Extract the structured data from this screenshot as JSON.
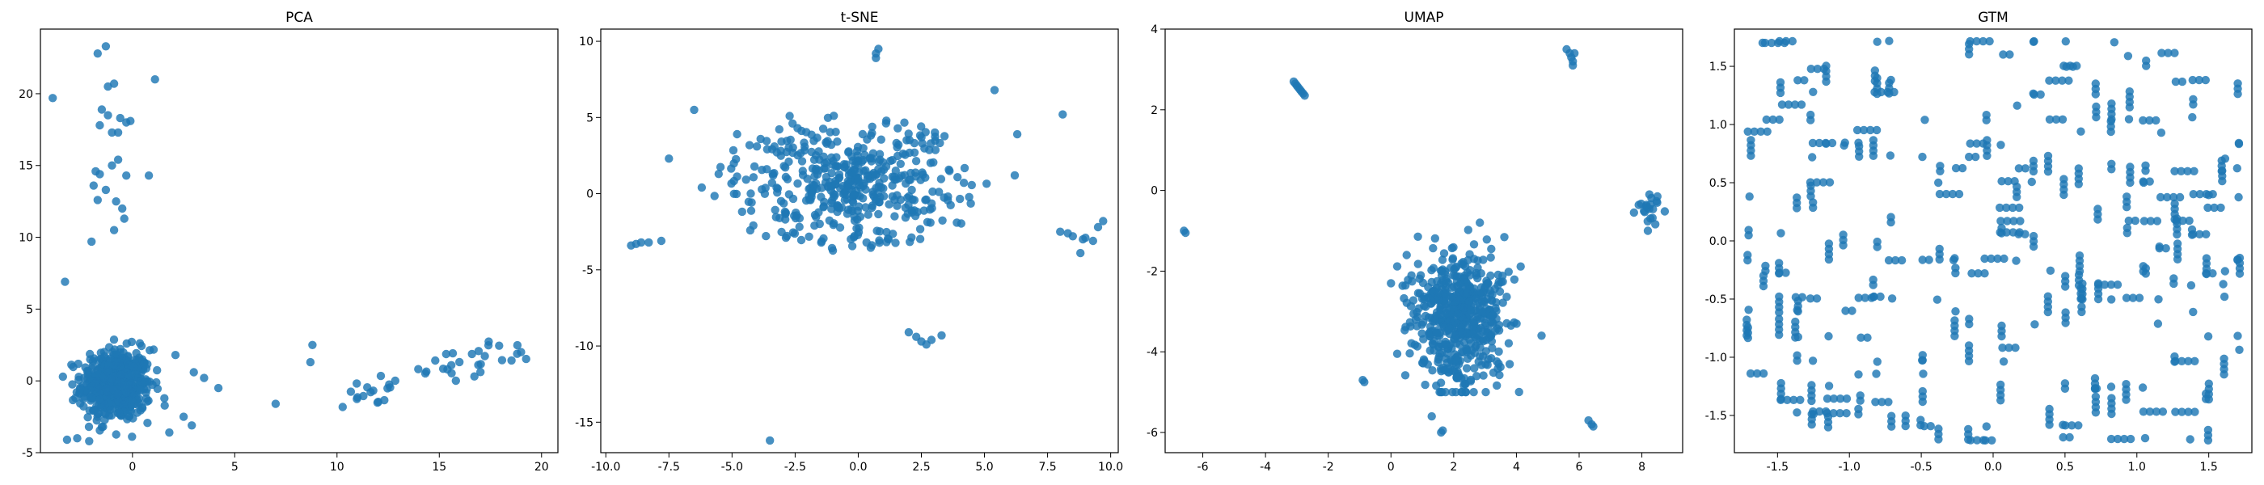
{
  "figure": {
    "background": "#ffffff",
    "point_color": "#1f77b4"
  },
  "chart_data": [
    {
      "type": "scatter",
      "title": "PCA",
      "xlabel": "",
      "ylabel": "",
      "xlim": [
        -4.5,
        20.8
      ],
      "ylim": [
        -5,
        24.5
      ],
      "xticks": [
        0,
        5,
        10,
        15,
        20
      ],
      "yticks": [
        -5,
        0,
        5,
        10,
        15,
        20
      ],
      "grid": false,
      "clusters": [
        {
          "kind": "blob",
          "n": 520,
          "cx": -0.8,
          "cy": -0.3,
          "sx": 0.85,
          "sy": 1.25,
          "xr": [
            -3.4,
            3.3
          ],
          "yr": [
            -4.2,
            4.5
          ]
        },
        {
          "kind": "band",
          "n": 45,
          "x0": 10.2,
          "x1": 19.5,
          "y0": -1.2,
          "y1": 2.5,
          "jitter": 1.1
        }
      ],
      "points": [
        [
          -3.9,
          19.7
        ],
        [
          -3.3,
          6.9
        ],
        [
          -1.7,
          22.8
        ],
        [
          -1.3,
          23.3
        ],
        [
          -1.2,
          20.5
        ],
        [
          -1.5,
          18.9
        ],
        [
          -1.2,
          18.5
        ],
        [
          -1.6,
          17.8
        ],
        [
          -1.0,
          17.3
        ],
        [
          -0.7,
          17.3
        ],
        [
          -0.6,
          18.3
        ],
        [
          -0.3,
          18.0
        ],
        [
          -0.1,
          18.1
        ],
        [
          -0.9,
          20.7
        ],
        [
          1.1,
          21.0
        ],
        [
          -0.3,
          14.3
        ],
        [
          -0.7,
          15.4
        ],
        [
          -1.0,
          15.0
        ],
        [
          -1.6,
          14.4
        ],
        [
          -1.8,
          14.6
        ],
        [
          -1.9,
          13.6
        ],
        [
          -1.3,
          13.3
        ],
        [
          -1.7,
          12.6
        ],
        [
          -0.8,
          12.5
        ],
        [
          -0.5,
          12.0
        ],
        [
          -0.4,
          11.3
        ],
        [
          -0.9,
          10.5
        ],
        [
          -2.0,
          9.7
        ],
        [
          0.8,
          14.3
        ],
        [
          7.0,
          -1.6
        ],
        [
          8.8,
          2.5
        ],
        [
          8.7,
          1.3
        ],
        [
          3.0,
          0.6
        ],
        [
          3.5,
          0.2
        ],
        [
          4.2,
          -0.5
        ],
        [
          2.5,
          -2.5
        ],
        [
          2.9,
          -3.1
        ],
        [
          -3.2,
          -4.1
        ],
        [
          -2.7,
          -4.0
        ],
        [
          2.1,
          1.8
        ],
        [
          1.8,
          -3.6
        ]
      ]
    },
    {
      "type": "scatter",
      "title": "t-SNE",
      "xlabel": "",
      "ylabel": "",
      "xlim": [
        -10.2,
        10.3
      ],
      "ylim": [
        -17,
        10.8
      ],
      "xticks": [
        -10.0,
        -7.5,
        -5.0,
        -2.5,
        0.0,
        2.5,
        5.0,
        7.5,
        10.0
      ],
      "yticks": [
        -15,
        -10,
        -5,
        0,
        5,
        10
      ],
      "grid": false,
      "clusters": [
        {
          "kind": "blob",
          "n": 300,
          "cx": -0.3,
          "cy": 0.6,
          "sx": 1.6,
          "sy": 1.5,
          "xr": [
            -4.8,
            4.5
          ],
          "yr": [
            -4.8,
            6.5
          ]
        },
        {
          "kind": "ring",
          "n": 150,
          "cx": -0.3,
          "cy": 0.6,
          "rx": 5.0,
          "ry": 4.2,
          "xr": [
            -7.5,
            7.5
          ],
          "yr": [
            -6.0,
            7.2
          ]
        }
      ],
      "points": [
        [
          0.7,
          9.2
        ],
        [
          0.8,
          9.5
        ],
        [
          0.7,
          8.9
        ],
        [
          -8.8,
          -3.3
        ],
        [
          -9.0,
          -3.4
        ],
        [
          -8.6,
          -3.2
        ],
        [
          -8.3,
          -3.2
        ],
        [
          -7.8,
          -3.1
        ],
        [
          8.0,
          -2.5
        ],
        [
          8.5,
          -2.8
        ],
        [
          8.9,
          -3.0
        ],
        [
          9.3,
          -3.1
        ],
        [
          9.5,
          -2.2
        ],
        [
          9.7,
          -1.8
        ],
        [
          8.8,
          -3.9
        ],
        [
          8.3,
          -2.6
        ],
        [
          9.0,
          -2.9
        ],
        [
          8.1,
          5.2
        ],
        [
          2.0,
          -9.1
        ],
        [
          2.3,
          -9.4
        ],
        [
          2.5,
          -9.7
        ],
        [
          2.7,
          -9.9
        ],
        [
          3.3,
          -9.3
        ],
        [
          2.9,
          -9.6
        ],
        [
          -3.5,
          -16.2
        ],
        [
          -7.5,
          2.3
        ],
        [
          -6.5,
          5.5
        ],
        [
          -6.2,
          0.4
        ],
        [
          6.2,
          1.2
        ],
        [
          6.3,
          3.9
        ],
        [
          5.4,
          6.8
        ]
      ]
    },
    {
      "type": "scatter",
      "title": "UMAP",
      "xlabel": "",
      "ylabel": "",
      "xlim": [
        -7.2,
        9.3
      ],
      "ylim": [
        -6.5,
        4.0
      ],
      "xticks": [
        -6,
        -4,
        -2,
        0,
        2,
        4,
        6,
        8
      ],
      "yticks": [
        -6,
        -4,
        -2,
        0,
        2,
        4
      ],
      "grid": false,
      "clusters": [
        {
          "kind": "blob",
          "n": 560,
          "cx": 2.2,
          "cy": -3.1,
          "sx": 0.75,
          "sy": 0.85,
          "xr": [
            0.2,
            4.6
          ],
          "yr": [
            -5.0,
            -0.8
          ]
        },
        {
          "kind": "blob",
          "n": 22,
          "cx": 8.2,
          "cy": -0.5,
          "sx": 0.2,
          "sy": 0.25,
          "xr": [
            7.7,
            8.8
          ],
          "yr": [
            -1.0,
            -0.1
          ]
        }
      ],
      "points": [
        [
          -6.6,
          -1.0
        ],
        [
          -6.55,
          -1.05
        ],
        [
          -3.1,
          2.7
        ],
        [
          -3.0,
          2.6
        ],
        [
          -2.95,
          2.55
        ],
        [
          -2.9,
          2.5
        ],
        [
          -2.85,
          2.45
        ],
        [
          -2.8,
          2.4
        ],
        [
          -3.05,
          2.65
        ],
        [
          -2.75,
          2.35
        ],
        [
          5.6,
          3.5
        ],
        [
          5.7,
          3.4
        ],
        [
          5.75,
          3.3
        ],
        [
          5.8,
          3.2
        ],
        [
          5.85,
          3.4
        ],
        [
          5.8,
          3.1
        ],
        [
          6.3,
          -5.7
        ],
        [
          6.4,
          -5.8
        ],
        [
          6.45,
          -5.85
        ],
        [
          1.6,
          -6.0
        ],
        [
          1.65,
          -5.95
        ],
        [
          -0.9,
          -4.7
        ],
        [
          -0.85,
          -4.75
        ],
        [
          1.3,
          -5.6
        ],
        [
          4.8,
          -3.6
        ],
        [
          0.0,
          -2.3
        ],
        [
          0.5,
          -1.6
        ]
      ]
    },
    {
      "type": "scatter",
      "title": "GTM",
      "xlabel": "",
      "ylabel": "",
      "xlim": [
        -1.8,
        1.8
      ],
      "ylim": [
        -1.82,
        1.82
      ],
      "xticks": [
        -1.5,
        -1.0,
        -0.5,
        0.0,
        0.5,
        1.0,
        1.5
      ],
      "yticks": [
        -1.5,
        -1.0,
        -0.5,
        0.0,
        0.5,
        1.0,
        1.5
      ],
      "grid": false,
      "clusters": [
        {
          "kind": "lattice",
          "n": 620,
          "x0": -1.7,
          "x1": 1.7,
          "y0": -1.7,
          "y1": 1.7,
          "step": 0.11
        }
      ],
      "points": []
    }
  ]
}
